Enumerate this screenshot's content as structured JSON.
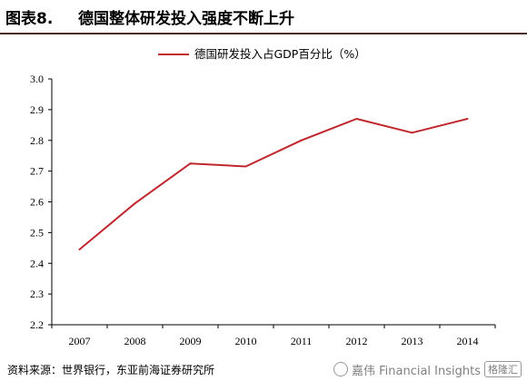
{
  "header": {
    "figure_number": "图表8.",
    "title": "德国整体研发投入强度不断上升"
  },
  "source": "资料来源：世界银行，东亚前海证券研究所",
  "watermark": {
    "text": "嘉伟 Financial Insights",
    "logo_text": "格隆汇"
  },
  "colors": {
    "series_line": "#c0272d",
    "axis": "#000000",
    "title_rule": "#4a2a2a"
  },
  "chart_data": {
    "type": "line",
    "title": "",
    "xlabel": "",
    "ylabel": "",
    "categories": [
      "2007",
      "2008",
      "2009",
      "2010",
      "2011",
      "2012",
      "2013",
      "2014"
    ],
    "series": [
      {
        "name": "德国研发投入占GDP百分比（%）",
        "values": [
          2.445,
          2.595,
          2.725,
          2.715,
          2.8,
          2.87,
          2.825,
          2.87
        ]
      }
    ],
    "ylim": [
      2.2,
      3.0
    ],
    "yticks": [
      "2.2",
      "2.3",
      "2.4",
      "2.5",
      "2.6",
      "2.7",
      "2.8",
      "2.9",
      "3.0"
    ],
    "grid": false,
    "legend_position": "top-center"
  }
}
